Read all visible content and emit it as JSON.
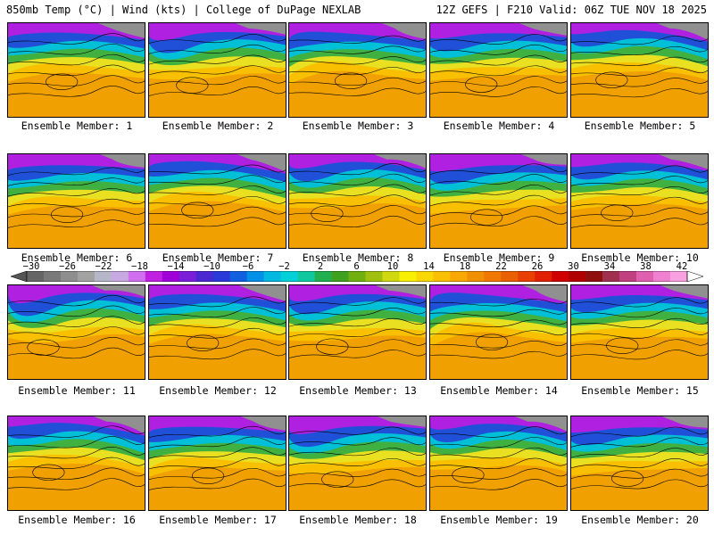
{
  "header": {
    "left": "850mb Temp (°C) | Wind (kts) | College of DuPage NEXLAB",
    "right": "12Z GEFS | F210 Valid: 06Z TUE NOV 18 2025"
  },
  "members": [
    {
      "label": "Ensemble Member: 1"
    },
    {
      "label": "Ensemble Member: 2"
    },
    {
      "label": "Ensemble Member: 3"
    },
    {
      "label": "Ensemble Member: 4"
    },
    {
      "label": "Ensemble Member: 5"
    },
    {
      "label": "Ensemble Member: 6"
    },
    {
      "label": "Ensemble Member: 7"
    },
    {
      "label": "Ensemble Member: 8"
    },
    {
      "label": "Ensemble Member: 9"
    },
    {
      "label": "Ensemble Member: 10"
    },
    {
      "label": "Ensemble Member: 11"
    },
    {
      "label": "Ensemble Member: 12"
    },
    {
      "label": "Ensemble Member: 13"
    },
    {
      "label": "Ensemble Member: 14"
    },
    {
      "label": "Ensemble Member: 15"
    },
    {
      "label": "Ensemble Member: 16"
    },
    {
      "label": "Ensemble Member: 17"
    },
    {
      "label": "Ensemble Member: 18"
    },
    {
      "label": "Ensemble Member: 19"
    },
    {
      "label": "Ensemble Member: 20"
    }
  ],
  "colorbar": {
    "ticks": [
      "−30",
      "−26",
      "−22",
      "−18",
      "−14",
      "−10",
      "−6",
      "−2",
      "2",
      "6",
      "10",
      "14",
      "18",
      "22",
      "26",
      "30",
      "34",
      "38",
      "42"
    ],
    "colors": [
      "#666666",
      "#7a7a7a",
      "#8e8e8e",
      "#a2a2a2",
      "#b6b6c8",
      "#c8a8e0",
      "#d070f0",
      "#c020e0",
      "#a000d8",
      "#7a1ed8",
      "#4a2ad0",
      "#2a3ad8",
      "#1060e0",
      "#0090e8",
      "#00b8e0",
      "#00d0d8",
      "#10c8a0",
      "#20b050",
      "#40a020",
      "#70b010",
      "#a0c010",
      "#d0d810",
      "#f8f000",
      "#f8d800",
      "#f8c000",
      "#f8a800",
      "#f09000",
      "#f07800",
      "#e86000",
      "#e84000",
      "#e02000",
      "#d00000",
      "#b00000",
      "#901010",
      "#a03050",
      "#c04080",
      "#e060b0",
      "#f080d0",
      "#f8a0e0"
    ]
  }
}
